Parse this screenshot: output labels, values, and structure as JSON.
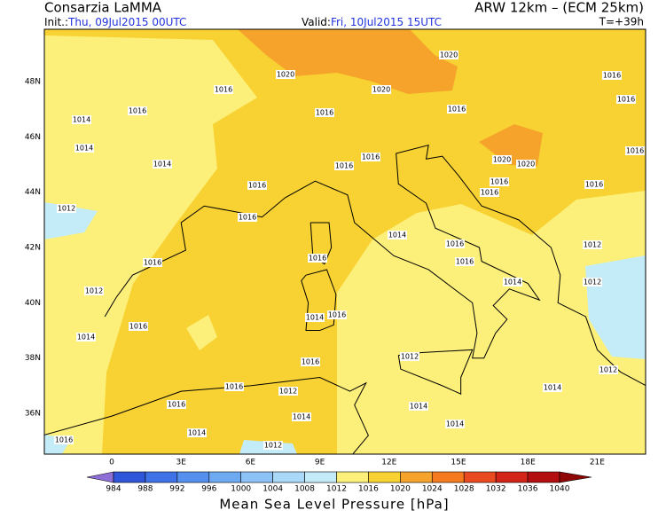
{
  "header": {
    "left_title": "Consarzia LaMMA",
    "right_title": "ARW 12km – (ECM 25km)",
    "init_label": "Init.:",
    "init_value": "Thu, 09Jul2015 00UTC",
    "valid_label": "Valid:",
    "valid_value": "Fri, 10Jul2015 15UTC",
    "lead_time": "T=+39h"
  },
  "map": {
    "lat_labels": [
      "48N",
      "46N",
      "44N",
      "42N",
      "40N",
      "38N",
      "36N"
    ],
    "lon_labels": [
      "0",
      "3E",
      "6E",
      "9E",
      "12E",
      "15E",
      "18E",
      "21E"
    ],
    "isobar_labels": [
      1020,
      1020,
      1020,
      1016,
      1016,
      1014,
      1016,
      1016,
      1016,
      1016,
      1014,
      1014,
      1016,
      1016,
      1020,
      1020,
      1016,
      1016,
      1016,
      1016,
      1016,
      1012,
      1016,
      1014,
      1016,
      1012,
      1016,
      1016,
      1016,
      1012,
      1014,
      1012,
      1014,
      1016,
      1016,
      1014,
      1016,
      1012,
      1012,
      1016,
      1012,
      1014,
      1016,
      1014,
      1014,
      1014,
      1014,
      1016,
      1012
    ]
  },
  "colorbar": {
    "title": "Mean Sea Level Pressure [hPa]",
    "levels": [
      984,
      988,
      992,
      996,
      1000,
      1004,
      1008,
      1012,
      1016,
      1020,
      1024,
      1028,
      1032,
      1036,
      1040
    ],
    "colors": [
      "#8f6fd6",
      "#2f55d8",
      "#3f72e6",
      "#5590ee",
      "#6eaaf2",
      "#8cc2f6",
      "#a9d8f8",
      "#c3ecf8",
      "#fcf07a",
      "#f8d232",
      "#f5a32a",
      "#f57a1f",
      "#ea4a1f",
      "#d22418",
      "#b30e10",
      "#8f0808"
    ]
  }
}
